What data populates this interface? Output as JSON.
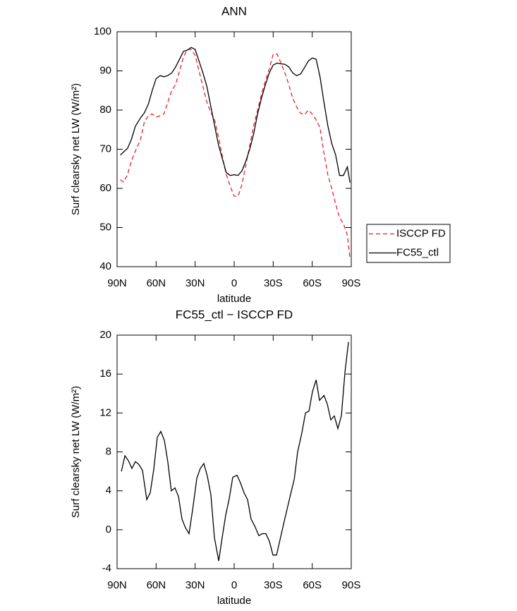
{
  "chart_data": [
    {
      "type": "line",
      "title": "ANN",
      "xlabel": "latitude",
      "ylabel": "Surf clearsky net LW (W/m²)",
      "x": [
        87.5,
        85,
        82,
        79,
        76,
        72,
        69,
        66,
        63,
        60,
        57,
        54,
        51,
        48,
        45,
        42,
        39,
        36,
        33,
        30,
        27,
        24,
        21,
        18,
        15,
        12,
        9,
        6,
        3,
        0,
        -3,
        -6,
        -9,
        -12,
        -15,
        -18,
        -21,
        -24,
        -27,
        -30,
        -33,
        -36,
        -39,
        -42,
        -45,
        -48,
        -51,
        -54,
        -57,
        -60,
        -63,
        -66,
        -69,
        -72,
        -75,
        -78,
        -81,
        -84,
        -87,
        -89
      ],
      "series": [
        {
          "name": "ISCCP FD",
          "color": "#e8202a",
          "dash": true,
          "values": [
            62.2,
            61.6,
            63.5,
            67,
            69.5,
            72.5,
            77,
            78.5,
            79,
            78.2,
            78.5,
            79,
            82,
            85,
            86.5,
            90,
            93.5,
            95.5,
            95.5,
            94,
            90,
            86,
            82,
            79.5,
            77.5,
            73,
            68,
            63.5,
            60.5,
            58,
            58,
            61,
            66,
            71,
            76,
            80,
            84,
            87.5,
            90.5,
            94.3,
            94.3,
            92,
            89.5,
            86.5,
            83,
            80.8,
            79.2,
            78.8,
            80,
            79,
            77.5,
            75.5,
            69,
            63.5,
            60,
            56,
            52.5,
            51,
            48,
            42
          ]
        },
        {
          "name": "FC55_ctl",
          "color": "#000000",
          "dash": false,
          "values": [
            68.5,
            69.3,
            70.2,
            72.5,
            75.8,
            78,
            79.3,
            81.5,
            85,
            88,
            88.8,
            88.5,
            88.8,
            89.5,
            91,
            93,
            95,
            95.3,
            96,
            95.5,
            92.5,
            89.5,
            86,
            81,
            76,
            71,
            67.5,
            64,
            63.3,
            63.5,
            63.3,
            64.5,
            67,
            70,
            74,
            79,
            83,
            86.5,
            89.5,
            91.5,
            92,
            91.8,
            91.7,
            91,
            89.5,
            88.8,
            89.2,
            90.8,
            92.5,
            93.3,
            93,
            88.5,
            82,
            76,
            71.5,
            68.5,
            63.3,
            63.3,
            65.5,
            61.5
          ]
        }
      ],
      "xlim": [
        90,
        -90
      ],
      "xticks": [
        {
          "value": 90,
          "label": "90N"
        },
        {
          "value": 60,
          "label": "60N"
        },
        {
          "value": 30,
          "label": "30N"
        },
        0,
        {
          "value": -30,
          "label": "30S"
        },
        {
          "value": -60,
          "label": "60S"
        },
        {
          "value": -90,
          "label": "90S"
        }
      ],
      "ylim": [
        40,
        100
      ],
      "yticks": [
        40,
        50,
        60,
        70,
        80,
        90,
        100
      ],
      "legend": "right"
    },
    {
      "type": "line",
      "title": "FC55_ctl − ISCCP FD",
      "xlabel": "latitude",
      "ylabel": "Surf clearsky net LW (W/m²)",
      "x": [
        86.7,
        84,
        81.3,
        78.6,
        75.9,
        73.2,
        70.5,
        67.2,
        64.5,
        61.8,
        59.1,
        56.4,
        53.7,
        51,
        48.3,
        45.5,
        42.8,
        40.1,
        37.4,
        34.7,
        32,
        28.7,
        26,
        23.3,
        20.6,
        17.9,
        15.2,
        11.9,
        9.2,
        6.5,
        3.8,
        1.1,
        -2.2,
        -4.9,
        -7.6,
        -10.3,
        -13,
        -15.7,
        -19,
        -21.7,
        -24.4,
        -27.1,
        -29.8,
        -32.6,
        -35.3,
        -38,
        -40.8,
        -43.5,
        -46.2,
        -48.8,
        -52.1,
        -54.8,
        -57.5,
        -60.2,
        -63,
        -65.6,
        -69,
        -71.6,
        -74.3,
        -77,
        -79.7,
        -82.4,
        -85.2,
        -87.9
      ],
      "values": [
        6,
        7.6,
        7.1,
        6.3,
        7,
        6.7,
        6.1,
        3.1,
        3.8,
        6.2,
        9.5,
        10.1,
        9.2,
        7,
        4,
        4.3,
        3.4,
        1.1,
        0.2,
        -0.4,
        2,
        5.3,
        6.3,
        6.8,
        5.5,
        3.6,
        -0.8,
        -3.2,
        -0.8,
        1.5,
        3.2,
        5.4,
        5.6,
        4.8,
        3.8,
        3.1,
        1.1,
        0.4,
        -0.6,
        -0.4,
        -0.4,
        -1.2,
        -2.6,
        -2.6,
        -1,
        0.6,
        2.2,
        3.7,
        5.2,
        8,
        10,
        12,
        12.2,
        14.2,
        15.4,
        13.3,
        13.8,
        12.9,
        11.3,
        11.7,
        10.4,
        11.7,
        16.2,
        19.3
      ],
      "color": "#000000",
      "xlim": [
        90,
        -90
      ],
      "xticks": [
        {
          "value": 90,
          "label": "90N"
        },
        {
          "value": 60,
          "label": "60N"
        },
        {
          "value": 30,
          "label": "30N"
        },
        0,
        {
          "value": -30,
          "label": "30S"
        },
        {
          "value": -60,
          "label": "60S"
        },
        {
          "value": -90,
          "label": "90S"
        }
      ],
      "ylim": [
        -4,
        20
      ],
      "yticks": [
        -4,
        0,
        4,
        8,
        12,
        16,
        20
      ]
    }
  ]
}
